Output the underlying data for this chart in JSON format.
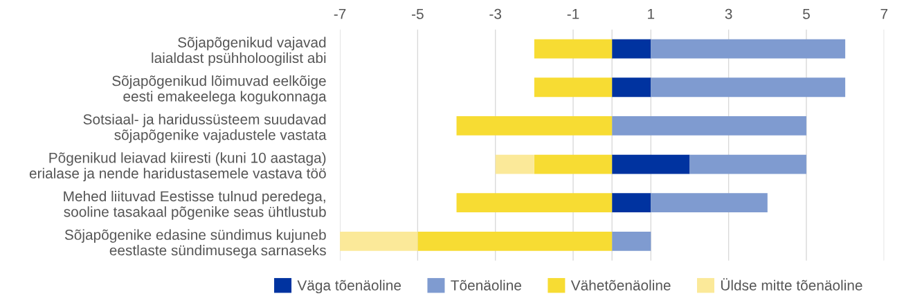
{
  "chart_data": {
    "type": "bar",
    "orientation": "horizontal",
    "stacked": true,
    "categories": [
      "Sõjapõgenikud vajavad\nlaialdast psühholoogilist abi",
      "Sõjapõgenikud lõimuvad eelkõige\neesti emakeelega kogukonnaga",
      "Sotsiaal- ja haridussüsteem suudavad\nsõjapõgenike vajadustele vastata",
      "Põgenikud leiavad kiiresti (kuni 10 aastaga)\nerialase ja nende haridustasemele vastava töö",
      "Mehed liituvad Eestisse tulnud peredega,\nsooline tasakaal põgenike seas ühtlustub",
      "Sõjapõgenike edasine sündimus kujuneb\neestlaste sündimusega sarnaseks"
    ],
    "series": [
      {
        "name": "Väga tõenäoline",
        "color": "#0033a0",
        "values": [
          1,
          1,
          0,
          2,
          1,
          0
        ]
      },
      {
        "name": "Tõenäoline",
        "color": "#7f9bd0",
        "values": [
          5,
          5,
          5,
          3,
          3,
          1
        ]
      },
      {
        "name": "Vähetõenäoline",
        "color": "#f7dc33",
        "values": [
          -2,
          -2,
          -4,
          -2,
          -4,
          -5
        ]
      },
      {
        "name": "Üldse mitte tõenäoline",
        "color": "#fbe999",
        "values": [
          0,
          0,
          0,
          -1,
          0,
          -2
        ]
      }
    ],
    "xlim": [
      -7,
      7
    ],
    "xticks": [
      -7,
      -5,
      -3,
      -1,
      1,
      3,
      5,
      7
    ],
    "grid": "x",
    "legend": "bottom"
  }
}
